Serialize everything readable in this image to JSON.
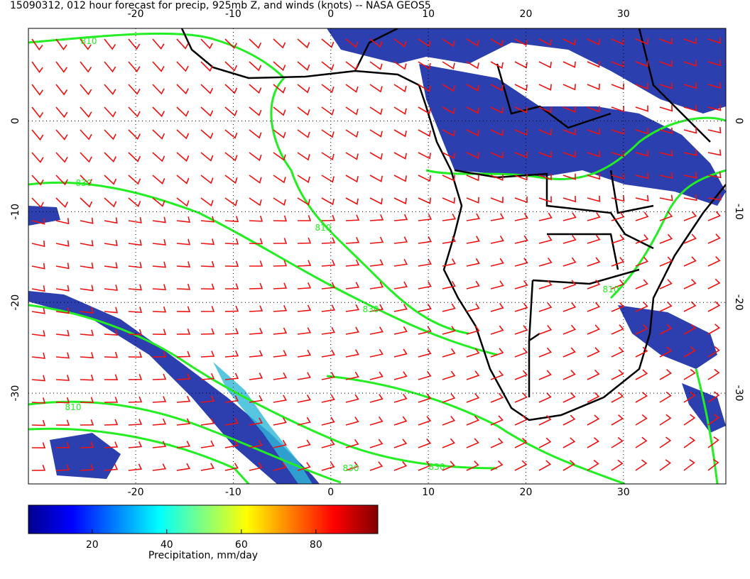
{
  "title": "15090312, 012 hour forecast for precip, 925mb Z, and winds (knots) -- NASA GEOS5",
  "map": {
    "xlim": [
      -31,
      40.5
    ],
    "ylim": [
      -40,
      10.2
    ],
    "xticks": [
      -20,
      -10,
      0,
      10,
      20,
      30
    ],
    "yticks": [
      0,
      -10,
      -20,
      -30
    ],
    "contour_labels": [
      810,
      830,
      810,
      830,
      810,
      830,
      810,
      830
    ]
  },
  "colorbar": {
    "lim": [
      2.9,
      96.6
    ],
    "ticks": [
      20,
      40,
      60,
      80
    ],
    "label": "Precipitation, mm/day",
    "colors": [
      "#00008f",
      "#0000ff",
      "#0080ff",
      "#00ffff",
      "#80ff80",
      "#ffff00",
      "#ff8000",
      "#ff0000",
      "#800000"
    ]
  }
}
